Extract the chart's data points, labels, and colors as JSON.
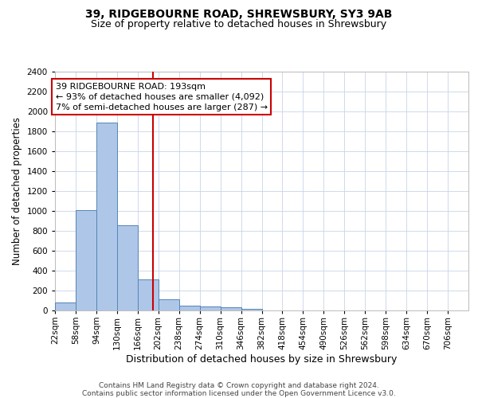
{
  "title1": "39, RIDGEBOURNE ROAD, SHREWSBURY, SY3 9AB",
  "title2": "Size of property relative to detached houses in Shrewsbury",
  "xlabel": "Distribution of detached houses by size in Shrewsbury",
  "ylabel": "Number of detached properties",
  "annotation_line1": "39 RIDGEBOURNE ROAD: 193sqm",
  "annotation_line2": "← 93% of detached houses are smaller (4,092)",
  "annotation_line3": "7% of semi-detached houses are larger (287) →",
  "footer_line1": "Contains HM Land Registry data © Crown copyright and database right 2024.",
  "footer_line2": "Contains public sector information licensed under the Open Government Licence v3.0.",
  "property_size": 193,
  "bar_edges": [
    22,
    58,
    94,
    130,
    166,
    202,
    238,
    274,
    310,
    346,
    382,
    418,
    454,
    490,
    526,
    562,
    598,
    634,
    670,
    706,
    742
  ],
  "bar_heights": [
    80,
    1010,
    1890,
    860,
    310,
    115,
    50,
    40,
    30,
    20,
    0,
    0,
    0,
    0,
    0,
    0,
    0,
    0,
    0,
    0
  ],
  "bar_color": "#aec6e8",
  "bar_edgecolor": "#5585b5",
  "vline_color": "#cc0000",
  "annotation_box_edgecolor": "#cc0000",
  "background_color": "#ffffff",
  "grid_color": "#c8d4e8",
  "ylim_max": 2400,
  "yticks": [
    0,
    200,
    400,
    600,
    800,
    1000,
    1200,
    1400,
    1600,
    1800,
    2000,
    2200,
    2400
  ],
  "title1_fontsize": 10,
  "title2_fontsize": 9,
  "xlabel_fontsize": 9,
  "ylabel_fontsize": 8.5,
  "tick_fontsize": 7.5,
  "annotation_fontsize": 8,
  "footer_fontsize": 6.5
}
